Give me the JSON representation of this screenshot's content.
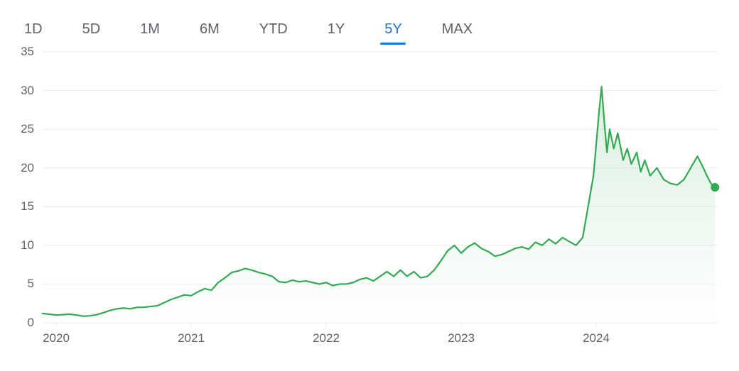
{
  "tabs": {
    "items": [
      {
        "label": "1D",
        "active": false
      },
      {
        "label": "5D",
        "active": false
      },
      {
        "label": "1M",
        "active": false
      },
      {
        "label": "6M",
        "active": false
      },
      {
        "label": "YTD",
        "active": false
      },
      {
        "label": "1Y",
        "active": false
      },
      {
        "label": "5Y",
        "active": true
      },
      {
        "label": "MAX",
        "active": false
      }
    ],
    "active_color": "#1a73e8",
    "inactive_color": "#5f6368",
    "underline_color": "#1a73e8"
  },
  "chart": {
    "type": "area",
    "line_color": "#34a853",
    "line_width": 2.2,
    "area_fill_top": "rgba(52,168,83,0.18)",
    "area_fill_bottom": "rgba(52,168,83,0.00)",
    "end_dot_color": "#34a853",
    "end_dot_radius": 6,
    "background_color": "#ffffff",
    "grid_color": "#ececec",
    "grid_width": 1,
    "axis_label_color": "#5f6368",
    "axis_label_fontsize": 17,
    "tab_fontsize": 20,
    "ylim": [
      0,
      35
    ],
    "ytick_step": 5,
    "yticks": [
      0,
      5,
      10,
      15,
      20,
      25,
      30,
      35
    ],
    "xlim": [
      0,
      5
    ],
    "xticks": [
      {
        "pos": 0.1,
        "label": "2020"
      },
      {
        "pos": 1.1,
        "label": "2021"
      },
      {
        "pos": 2.1,
        "label": "2022"
      },
      {
        "pos": 3.1,
        "label": "2023"
      },
      {
        "pos": 4.1,
        "label": "2024"
      }
    ],
    "top_rule": true,
    "series": [
      {
        "x": 0.0,
        "y": 1.2
      },
      {
        "x": 0.05,
        "y": 1.1
      },
      {
        "x": 0.1,
        "y": 1.0
      },
      {
        "x": 0.15,
        "y": 1.05
      },
      {
        "x": 0.2,
        "y": 1.1
      },
      {
        "x": 0.25,
        "y": 1.0
      },
      {
        "x": 0.3,
        "y": 0.85
      },
      {
        "x": 0.35,
        "y": 0.9
      },
      {
        "x": 0.4,
        "y": 1.05
      },
      {
        "x": 0.45,
        "y": 1.3
      },
      {
        "x": 0.5,
        "y": 1.6
      },
      {
        "x": 0.55,
        "y": 1.8
      },
      {
        "x": 0.6,
        "y": 1.9
      },
      {
        "x": 0.65,
        "y": 1.8
      },
      {
        "x": 0.7,
        "y": 2.0
      },
      {
        "x": 0.75,
        "y": 2.0
      },
      {
        "x": 0.8,
        "y": 2.1
      },
      {
        "x": 0.85,
        "y": 2.2
      },
      {
        "x": 0.9,
        "y": 2.6
      },
      {
        "x": 0.95,
        "y": 3.0
      },
      {
        "x": 1.0,
        "y": 3.3
      },
      {
        "x": 1.05,
        "y": 3.6
      },
      {
        "x": 1.1,
        "y": 3.5
      },
      {
        "x": 1.15,
        "y": 4.0
      },
      {
        "x": 1.2,
        "y": 4.4
      },
      {
        "x": 1.25,
        "y": 4.2
      },
      {
        "x": 1.3,
        "y": 5.2
      },
      {
        "x": 1.35,
        "y": 5.8
      },
      {
        "x": 1.4,
        "y": 6.5
      },
      {
        "x": 1.45,
        "y": 6.7
      },
      {
        "x": 1.5,
        "y": 7.0
      },
      {
        "x": 1.55,
        "y": 6.8
      },
      {
        "x": 1.6,
        "y": 6.5
      },
      {
        "x": 1.65,
        "y": 6.3
      },
      {
        "x": 1.7,
        "y": 6.0
      },
      {
        "x": 1.75,
        "y": 5.3
      },
      {
        "x": 1.8,
        "y": 5.2
      },
      {
        "x": 1.85,
        "y": 5.5
      },
      {
        "x": 1.9,
        "y": 5.3
      },
      {
        "x": 1.95,
        "y": 5.4
      },
      {
        "x": 2.0,
        "y": 5.2
      },
      {
        "x": 2.05,
        "y": 5.0
      },
      {
        "x": 2.1,
        "y": 5.2
      },
      {
        "x": 2.15,
        "y": 4.8
      },
      {
        "x": 2.2,
        "y": 5.0
      },
      {
        "x": 2.25,
        "y": 5.0
      },
      {
        "x": 2.3,
        "y": 5.2
      },
      {
        "x": 2.35,
        "y": 5.6
      },
      {
        "x": 2.4,
        "y": 5.8
      },
      {
        "x": 2.45,
        "y": 5.4
      },
      {
        "x": 2.5,
        "y": 6.0
      },
      {
        "x": 2.55,
        "y": 6.6
      },
      {
        "x": 2.6,
        "y": 6.0
      },
      {
        "x": 2.65,
        "y": 6.8
      },
      {
        "x": 2.7,
        "y": 6.0
      },
      {
        "x": 2.75,
        "y": 6.6
      },
      {
        "x": 2.8,
        "y": 5.8
      },
      {
        "x": 2.85,
        "y": 6.0
      },
      {
        "x": 2.9,
        "y": 6.8
      },
      {
        "x": 2.95,
        "y": 8.0
      },
      {
        "x": 3.0,
        "y": 9.3
      },
      {
        "x": 3.05,
        "y": 10.0
      },
      {
        "x": 3.1,
        "y": 9.0
      },
      {
        "x": 3.15,
        "y": 9.8
      },
      {
        "x": 3.2,
        "y": 10.3
      },
      {
        "x": 3.25,
        "y": 9.6
      },
      {
        "x": 3.3,
        "y": 9.2
      },
      {
        "x": 3.35,
        "y": 8.6
      },
      {
        "x": 3.4,
        "y": 8.8
      },
      {
        "x": 3.45,
        "y": 9.2
      },
      {
        "x": 3.5,
        "y": 9.6
      },
      {
        "x": 3.55,
        "y": 9.8
      },
      {
        "x": 3.6,
        "y": 9.5
      },
      {
        "x": 3.65,
        "y": 10.4
      },
      {
        "x": 3.7,
        "y": 10.0
      },
      {
        "x": 3.75,
        "y": 10.8
      },
      {
        "x": 3.8,
        "y": 10.2
      },
      {
        "x": 3.85,
        "y": 11.0
      },
      {
        "x": 3.9,
        "y": 10.5
      },
      {
        "x": 3.95,
        "y": 10.0
      },
      {
        "x": 4.0,
        "y": 11.0
      },
      {
        "x": 4.03,
        "y": 14.0
      },
      {
        "x": 4.06,
        "y": 17.0
      },
      {
        "x": 4.08,
        "y": 19.0
      },
      {
        "x": 4.1,
        "y": 23.0
      },
      {
        "x": 4.12,
        "y": 27.0
      },
      {
        "x": 4.14,
        "y": 30.5
      },
      {
        "x": 4.16,
        "y": 26.0
      },
      {
        "x": 4.18,
        "y": 22.0
      },
      {
        "x": 4.2,
        "y": 25.0
      },
      {
        "x": 4.23,
        "y": 22.5
      },
      {
        "x": 4.26,
        "y": 24.5
      },
      {
        "x": 4.3,
        "y": 21.0
      },
      {
        "x": 4.33,
        "y": 22.5
      },
      {
        "x": 4.36,
        "y": 20.5
      },
      {
        "x": 4.4,
        "y": 22.0
      },
      {
        "x": 4.43,
        "y": 19.5
      },
      {
        "x": 4.46,
        "y": 21.0
      },
      {
        "x": 4.5,
        "y": 19.0
      },
      {
        "x": 4.55,
        "y": 20.0
      },
      {
        "x": 4.6,
        "y": 18.5
      },
      {
        "x": 4.65,
        "y": 18.0
      },
      {
        "x": 4.7,
        "y": 17.8
      },
      {
        "x": 4.75,
        "y": 18.5
      },
      {
        "x": 4.8,
        "y": 20.0
      },
      {
        "x": 4.85,
        "y": 21.5
      },
      {
        "x": 4.88,
        "y": 20.5
      },
      {
        "x": 4.92,
        "y": 19.0
      },
      {
        "x": 4.95,
        "y": 18.0
      },
      {
        "x": 4.98,
        "y": 17.5
      }
    ]
  }
}
